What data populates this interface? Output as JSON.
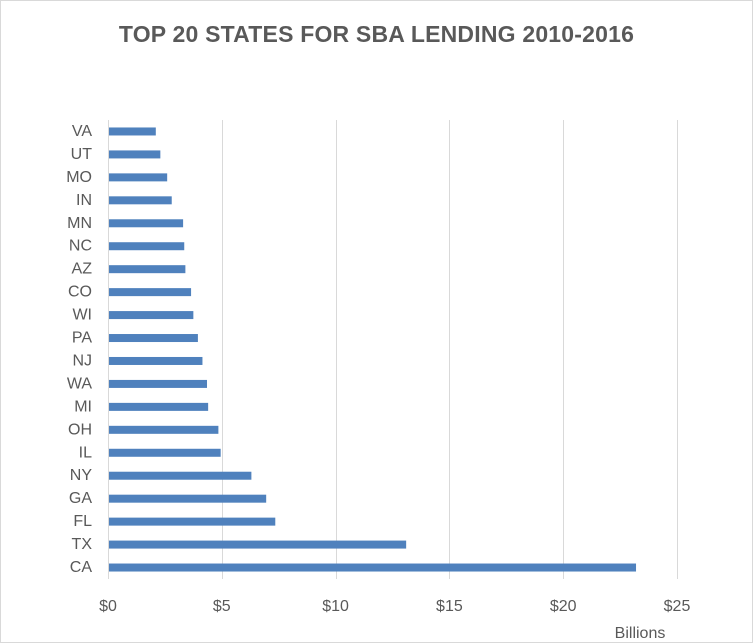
{
  "chart_data": {
    "type": "bar",
    "orientation": "horizontal",
    "title": "TOP 20 STATES FOR SBA LENDING 2010-2016",
    "categories": [
      "VA",
      "UT",
      "MO",
      "IN",
      "MN",
      "NC",
      "AZ",
      "CO",
      "WI",
      "PA",
      "NJ",
      "WA",
      "MI",
      "OH",
      "IL",
      "NY",
      "GA",
      "FL",
      "TX",
      "CA"
    ],
    "values": [
      2.1,
      2.3,
      2.6,
      2.8,
      3.3,
      3.35,
      3.4,
      3.65,
      3.75,
      3.95,
      4.15,
      4.35,
      4.4,
      4.85,
      4.95,
      6.3,
      6.95,
      7.35,
      13.1,
      23.2
    ],
    "x_ticks": [
      "$0",
      "$5",
      "$10",
      "$15",
      "$20",
      "$25"
    ],
    "x_tick_values": [
      0,
      5,
      10,
      15,
      20,
      25
    ],
    "xlim": [
      0,
      25
    ],
    "x_unit_label": "Billions",
    "xlabel": "",
    "ylabel": "",
    "grid": "vertical",
    "legend": "none",
    "bar_color": "#4f81bd",
    "grid_color": "#d9d9d9",
    "text_color": "#595959"
  }
}
